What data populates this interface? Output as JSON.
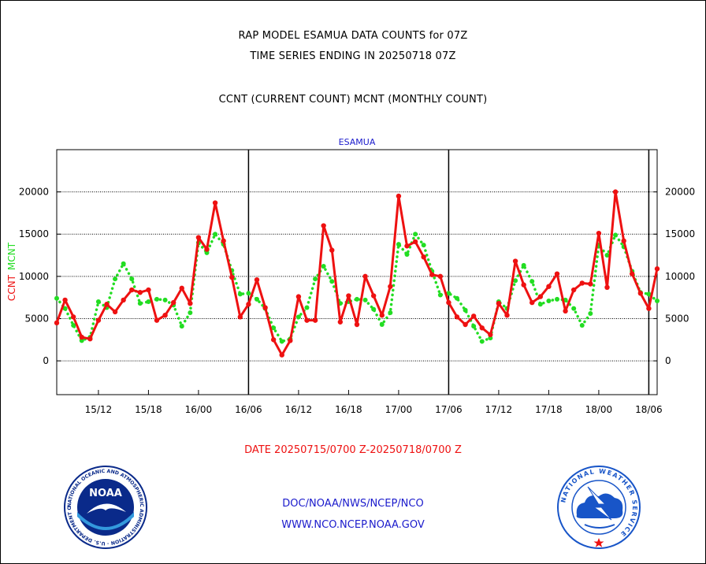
{
  "titles": {
    "line1": "RAP MODEL ESAMUA DATA COUNTS for 07Z",
    "line2": "TIME SERIES ENDING IN 20250718 07Z",
    "line3": "CCNT (CURRENT COUNT) MCNT (MONTHLY COUNT)"
  },
  "chart_data": {
    "type": "line",
    "title": "ESAMUA",
    "ylabel_current": "CCNT",
    "ylabel_monthly": "MCNT",
    "xlabel": "DATE 20250715/0700 Z-20250718/0700 Z",
    "xlim": [
      0,
      72
    ],
    "ylim": [
      -4000,
      25000
    ],
    "yticks": [
      0,
      5000,
      10000,
      15000,
      20000
    ],
    "xticks": [
      {
        "x": 5,
        "label": "15/12"
      },
      {
        "x": 11,
        "label": "15/18"
      },
      {
        "x": 17,
        "label": "16/00"
      },
      {
        "x": 23,
        "label": "16/06"
      },
      {
        "x": 29,
        "label": "16/12"
      },
      {
        "x": 35,
        "label": "16/18"
      },
      {
        "x": 41,
        "label": "17/00"
      },
      {
        "x": 47,
        "label": "17/06"
      },
      {
        "x": 53,
        "label": "17/12"
      },
      {
        "x": 59,
        "label": "17/18"
      },
      {
        "x": 65,
        "label": "18/00"
      },
      {
        "x": 71,
        "label": "18/06"
      }
    ],
    "day_dividers": [
      23,
      47,
      71
    ],
    "series": [
      {
        "name": "CCNT",
        "color": "#ee1111",
        "style": "solid",
        "values": [
          4500,
          7200,
          5200,
          2800,
          2600,
          4800,
          6700,
          5800,
          7200,
          8400,
          8100,
          8400,
          4800,
          5400,
          6900,
          8600,
          6800,
          14600,
          13200,
          18700,
          14200,
          9900,
          5200,
          6700,
          9600,
          6300,
          2500,
          700,
          2400,
          7600,
          4800,
          4800,
          16000,
          13100,
          4600,
          7700,
          4300,
          10000,
          7700,
          5400,
          8800,
          19500,
          13600,
          14100,
          12300,
          10200,
          10000,
          6900,
          5200,
          4300,
          5300,
          3900,
          3100,
          6800,
          5400,
          11800,
          9000,
          6900,
          7600,
          8800,
          10300,
          5900,
          8400,
          9200,
          9100,
          15100,
          8700,
          20000,
          14200,
          10300,
          8000,
          6200,
          10900
        ]
      },
      {
        "name": "MCNT",
        "color": "#22dd22",
        "style": "dotted",
        "values": [
          7400,
          6200,
          4200,
          2400,
          2800,
          7000,
          6300,
          9700,
          11500,
          9700,
          6800,
          7000,
          7300,
          7200,
          6600,
          4100,
          5700,
          14000,
          12800,
          15000,
          13800,
          10700,
          7900,
          8000,
          7300,
          6200,
          3900,
          2300,
          2600,
          5200,
          6300,
          9700,
          11200,
          9400,
          6800,
          7000,
          7300,
          7200,
          6100,
          4300,
          5700,
          13800,
          12600,
          15000,
          13700,
          10600,
          7800,
          8000,
          7400,
          6000,
          4100,
          2300,
          2700,
          7000,
          6200,
          9500,
          11300,
          9400,
          6700,
          7100,
          7300,
          7200,
          6200,
          4200,
          5600,
          13700,
          12500,
          14900,
          13500,
          10600,
          8100,
          7900,
          7100
        ]
      }
    ]
  },
  "footer": {
    "link1": "DOC/NOAA/NWS/NCEP/NCO",
    "link2": "WWW.NCO.NCEP.NOAA.GOV"
  },
  "logos": {
    "noaa_label": "NOAA",
    "noaa_ring_text": "NATIONAL OCEANIC AND ATMOSPHERIC ADMINISTRATION · U.S. DEPARTMENT OF COMMERCE ·",
    "nws_ring_text": "NATIONAL WEATHER SERVICE"
  },
  "colors": {
    "title_blue": "#1a1acc",
    "date_red": "#ee1111",
    "footer_blue": "#1a1acc",
    "noaa_dark_blue": "#0a2a8a",
    "noaa_light_blue": "#3399dd",
    "nws_blue": "#1855c8",
    "nws_red": "#ee1111"
  }
}
